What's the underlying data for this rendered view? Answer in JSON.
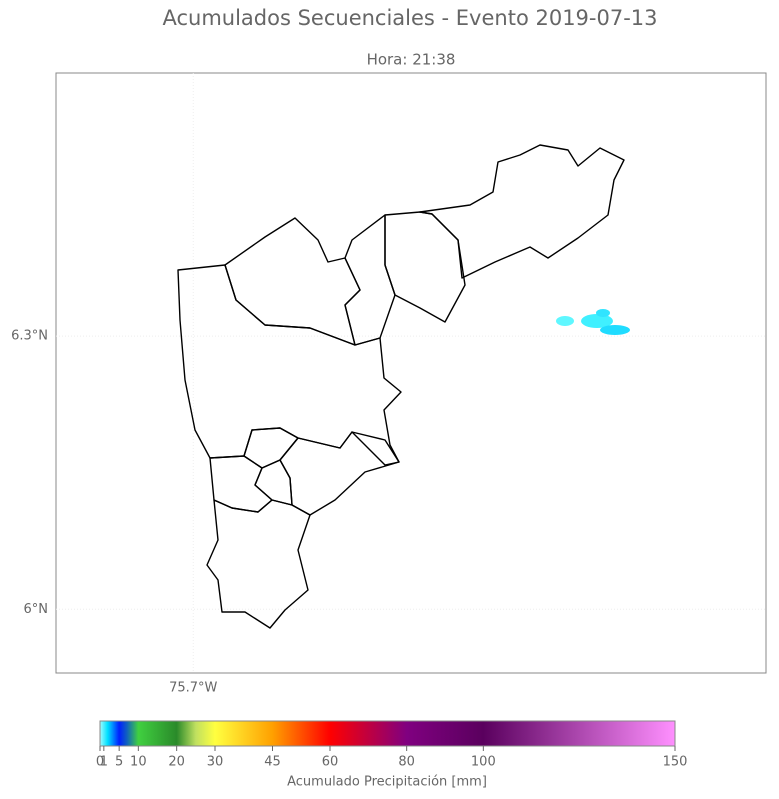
{
  "chart_data": {
    "type": "map",
    "title": "Acumulados Secuenciales - Evento 2019-07-13",
    "subtitle": "Hora: 21:38",
    "xlim": [
      -75.851,
      -75.07
    ],
    "ylim": [
      5.93,
      6.589
    ],
    "xticks": [
      {
        "value": -75.7,
        "label": "75.7°W"
      }
    ],
    "yticks": [
      {
        "value": 6,
        "label": "6°N"
      },
      {
        "value": 6.3,
        "label": "6.3°N"
      }
    ],
    "grid": true,
    "colorbar": {
      "label": "Acumulado Precipitación [mm]",
      "lim": [
        0,
        150
      ],
      "ticks": [
        0,
        1,
        5,
        10,
        20,
        30,
        45,
        60,
        80,
        100,
        150
      ],
      "colorscale": [
        {
          "value": 0,
          "color": "#9ffcff"
        },
        {
          "value": 2,
          "color": "#00e0ff"
        },
        {
          "value": 5,
          "color": "#0020ff"
        },
        {
          "value": 7,
          "color": "#1060c0"
        },
        {
          "value": 10,
          "color": "#40d040"
        },
        {
          "value": 20,
          "color": "#2a8a2a"
        },
        {
          "value": 25,
          "color": "#c0e060"
        },
        {
          "value": 30,
          "color": "#ffff40"
        },
        {
          "value": 45,
          "color": "#ffa000"
        },
        {
          "value": 60,
          "color": "#ff0000"
        },
        {
          "value": 80,
          "color": "#800080"
        },
        {
          "value": 100,
          "color": "#5a005e"
        },
        {
          "value": 150,
          "color": "#ff90ff"
        }
      ]
    }
  }
}
